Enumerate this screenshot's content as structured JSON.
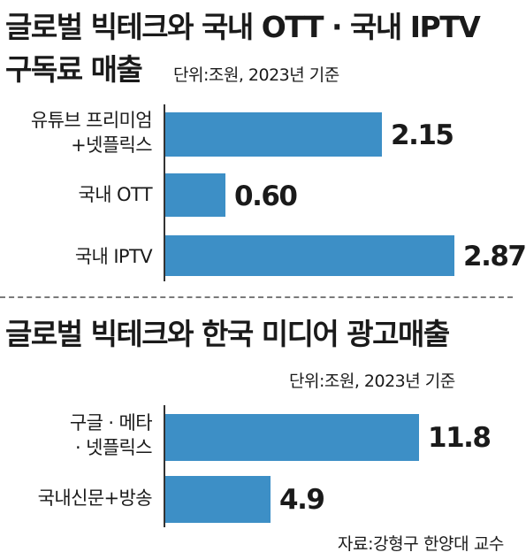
{
  "chart_data": [
    {
      "type": "bar",
      "orientation": "horizontal",
      "title": "글로벌 빅테크와 국내 OTT · 국내 IPTV 구독료 매출",
      "title_line1": "글로벌 빅테크와 국내 OTT · 국내 IPTV",
      "title_line2": "구독료 매출",
      "unit": "단위:조원, 2023년 기준",
      "categories": [
        "유튜브 프리미엄 +넷플릭스",
        "국내 OTT",
        "국내 IPTV"
      ],
      "category_lines": [
        [
          "유튜브 프리미엄",
          "+넷플릭스"
        ],
        [
          "국내 OTT"
        ],
        [
          "국내 IPTV"
        ]
      ],
      "values": [
        2.15,
        0.6,
        2.87
      ],
      "value_labels": [
        "2.15",
        "0.60",
        "2.87"
      ],
      "xlim": [
        0,
        2.87
      ],
      "color": "#3d8fc6"
    },
    {
      "type": "bar",
      "orientation": "horizontal",
      "title": "글로벌 빅테크와 한국 미디어 광고매출",
      "unit": "단위:조원, 2023년 기준",
      "categories": [
        "구글 · 메타 · 넷플릭스",
        "국내신문+방송"
      ],
      "category_lines": [
        [
          "구글 · 메타",
          "· 넷플릭스"
        ],
        [
          "국내신문+방송"
        ]
      ],
      "values": [
        11.8,
        4.9
      ],
      "value_labels": [
        "11.8",
        "4.9"
      ],
      "xlim": [
        0,
        14.0
      ],
      "color": "#3d8fc6"
    }
  ],
  "source": "자료:강형구 한양대 교수"
}
